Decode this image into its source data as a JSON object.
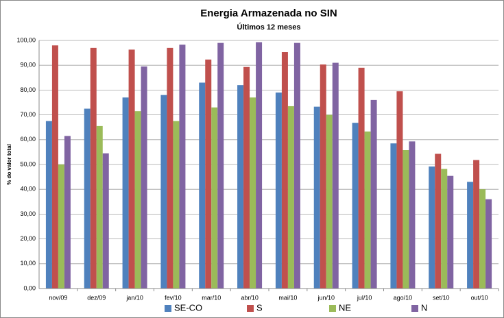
{
  "chart_data": {
    "type": "bar",
    "title": "Energia Armazenada no SIN",
    "subtitle": "Últimos 12 meses",
    "y_label": "% do valor total",
    "categories": [
      "nov/09",
      "dez/09",
      "jan/10",
      "fev/10",
      "mar/10",
      "abr/10",
      "mai/10",
      "jun/10",
      "jul/10",
      "ago/10",
      "set/10",
      "out/10"
    ],
    "series": [
      {
        "name": "SE-CO",
        "color": "#4f81bd",
        "values": [
          67.5,
          72.5,
          77,
          78,
          83,
          82,
          79,
          73.3,
          66.8,
          58.5,
          49.2,
          43
        ]
      },
      {
        "name": "S",
        "color": "#c0504d",
        "values": [
          98,
          97,
          96.3,
          97,
          92.3,
          89.3,
          95.3,
          90.3,
          89,
          79.5,
          54.3,
          51.8
        ]
      },
      {
        "name": "NE",
        "color": "#9bbb59",
        "values": [
          50,
          65.5,
          71.5,
          67.5,
          73,
          77,
          73.5,
          70,
          63.3,
          55.8,
          48.2,
          40
        ]
      },
      {
        "name": "N",
        "color": "#8064a2",
        "values": [
          61.5,
          54.5,
          89.5,
          98.3,
          99,
          99.3,
          99,
          91,
          76,
          59.3,
          45.4,
          36
        ]
      }
    ],
    "ylim": [
      0,
      100
    ],
    "yticks": [
      {
        "value": 0,
        "label": "0,00"
      },
      {
        "value": 10,
        "label": "10,00"
      },
      {
        "value": 20,
        "label": "20,00"
      },
      {
        "value": 30,
        "label": "30,00"
      },
      {
        "value": 40,
        "label": "40,00"
      },
      {
        "value": 50,
        "label": "50,00"
      },
      {
        "value": 60,
        "label": "60,00"
      },
      {
        "value": 70,
        "label": "70,00"
      },
      {
        "value": 80,
        "label": "80,00"
      },
      {
        "value": 90,
        "label": "90,00"
      },
      {
        "value": 100,
        "label": "100,00"
      }
    ],
    "grid": true,
    "legend": "bottom"
  }
}
